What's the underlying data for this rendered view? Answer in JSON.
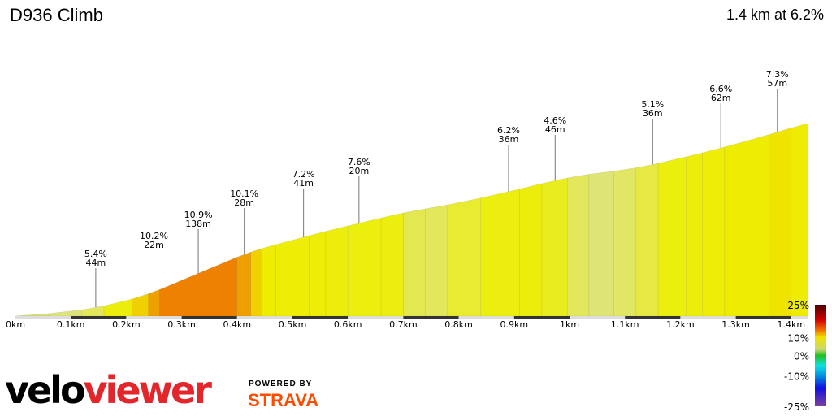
{
  "header": {
    "title": "D936 Climb",
    "summary": "1.4 km at 6.2%"
  },
  "chart_data": {
    "type": "area",
    "title": "D936 Climb",
    "xlabel": "",
    "ylabel": "",
    "x_ticks": [
      "0km",
      "0.1km",
      "0.2km",
      "0.3km",
      "0.4km",
      "0.5km",
      "0.6km",
      "0.7km",
      "0.8km",
      "0.9km",
      "1km",
      "1.1km",
      "1.2km",
      "1.3km",
      "1.4km"
    ],
    "x_tick_values": [
      0,
      0.1,
      0.2,
      0.3,
      0.4,
      0.5,
      0.6,
      0.7,
      0.8,
      0.9,
      1.0,
      1.1,
      1.2,
      1.3,
      1.4
    ],
    "segments": [
      {
        "end_km": 0.06,
        "grade": 2
      },
      {
        "end_km": 0.12,
        "grade": 3
      },
      {
        "end_km": 0.16,
        "grade": 4.5
      },
      {
        "end_km": 0.21,
        "grade": 6.5
      },
      {
        "end_km": 0.24,
        "grade": 8.5
      },
      {
        "end_km": 0.26,
        "grade": 9.5
      },
      {
        "end_km": 0.4,
        "grade": 11
      },
      {
        "end_km": 0.425,
        "grade": 9.5
      },
      {
        "end_km": 0.445,
        "grade": 8.5
      },
      {
        "end_km": 0.47,
        "grade": 7.5
      },
      {
        "end_km": 0.53,
        "grade": 7
      },
      {
        "end_km": 0.56,
        "grade": 6.8
      },
      {
        "end_km": 0.6,
        "grade": 6.5
      },
      {
        "end_km": 0.64,
        "grade": 6.2
      },
      {
        "end_km": 0.66,
        "grade": 6.3
      },
      {
        "end_km": 0.7,
        "grade": 6
      },
      {
        "end_km": 0.74,
        "grade": 5
      },
      {
        "end_km": 0.78,
        "grade": 4.5
      },
      {
        "end_km": 0.84,
        "grade": 5.5
      },
      {
        "end_km": 0.91,
        "grade": 6
      },
      {
        "end_km": 0.95,
        "grade": 6.5
      },
      {
        "end_km": 0.996,
        "grade": 5.8
      },
      {
        "end_km": 1.035,
        "grade": 4.5
      },
      {
        "end_km": 1.08,
        "grade": 3.2
      },
      {
        "end_km": 1.12,
        "grade": 4
      },
      {
        "end_km": 1.16,
        "grade": 5.2
      },
      {
        "end_km": 1.21,
        "grade": 6.2
      },
      {
        "end_km": 1.24,
        "grade": 6.5
      },
      {
        "end_km": 1.28,
        "grade": 6.8
      },
      {
        "end_km": 1.32,
        "grade": 7.2
      },
      {
        "end_km": 1.36,
        "grade": 7.5
      },
      {
        "end_km": 1.4,
        "grade": 7.8
      },
      {
        "end_km": 1.43,
        "grade": 7.3
      }
    ],
    "annotations": [
      {
        "km": 0.145,
        "grade": "5.4%",
        "length": "44m"
      },
      {
        "km": 0.25,
        "grade": "10.2%",
        "length": "22m"
      },
      {
        "km": 0.33,
        "grade": "10.9%",
        "length": "138m"
      },
      {
        "km": 0.413,
        "grade": "10.1%",
        "length": "28m"
      },
      {
        "km": 0.52,
        "grade": "7.2%",
        "length": "41m"
      },
      {
        "km": 0.62,
        "grade": "7.6%",
        "length": "20m"
      },
      {
        "km": 0.89,
        "grade": "6.2%",
        "length": "36m"
      },
      {
        "km": 0.974,
        "grade": "4.6%",
        "length": "46m"
      },
      {
        "km": 1.15,
        "grade": "5.1%",
        "length": "36m"
      },
      {
        "km": 1.273,
        "grade": "6.6%",
        "length": "62m"
      },
      {
        "km": 1.375,
        "grade": "7.3%",
        "length": "57m"
      }
    ],
    "legend": {
      "labels": [
        "25%",
        "10%",
        "0%",
        "-10%",
        "-25%"
      ],
      "values": [
        25,
        10,
        0,
        -10,
        -25
      ],
      "placement": "bottom-right"
    },
    "grid": false
  },
  "branding": {
    "logo_left": "velo",
    "logo_right": "viewer",
    "powered_by": "POWERED BY",
    "strava": "STRAVA"
  },
  "colors": {
    "steep": "#ee8200",
    "moderate": "#ecee10",
    "gentle": "#dde37a",
    "strava": "#fc4c02",
    "logo_red": "#e3262b"
  }
}
